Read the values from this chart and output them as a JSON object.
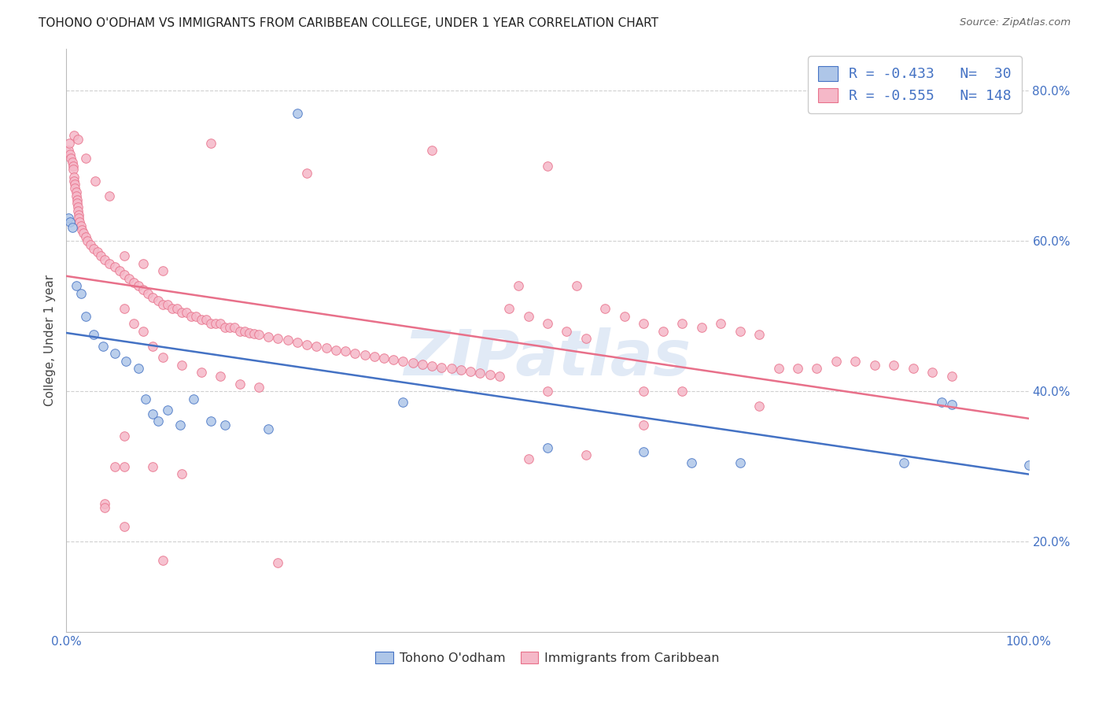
{
  "title": "TOHONO O'ODHAM VS IMMIGRANTS FROM CARIBBEAN COLLEGE, UNDER 1 YEAR CORRELATION CHART",
  "source": "Source: ZipAtlas.com",
  "ylabel": "College, Under 1 year",
  "legend_bottom": [
    "Tohono O'odham",
    "Immigrants from Caribbean"
  ],
  "blue_R": -0.433,
  "blue_N": 30,
  "pink_R": -0.555,
  "pink_N": 148,
  "blue_color": "#aec6e8",
  "pink_color": "#f5b8c8",
  "blue_line_color": "#4472c4",
  "pink_line_color": "#e8708a",
  "blue_scatter": [
    [
      0.002,
      0.63
    ],
    [
      0.004,
      0.625
    ],
    [
      0.006,
      0.618
    ],
    [
      0.01,
      0.54
    ],
    [
      0.015,
      0.53
    ],
    [
      0.02,
      0.5
    ],
    [
      0.028,
      0.475
    ],
    [
      0.038,
      0.46
    ],
    [
      0.05,
      0.45
    ],
    [
      0.062,
      0.44
    ],
    [
      0.075,
      0.43
    ],
    [
      0.082,
      0.39
    ],
    [
      0.09,
      0.37
    ],
    [
      0.095,
      0.36
    ],
    [
      0.105,
      0.375
    ],
    [
      0.118,
      0.355
    ],
    [
      0.132,
      0.39
    ],
    [
      0.15,
      0.36
    ],
    [
      0.165,
      0.355
    ],
    [
      0.21,
      0.35
    ],
    [
      0.24,
      0.77
    ],
    [
      0.35,
      0.385
    ],
    [
      0.5,
      0.325
    ],
    [
      0.6,
      0.32
    ],
    [
      0.65,
      0.305
    ],
    [
      0.7,
      0.305
    ],
    [
      0.87,
      0.305
    ],
    [
      0.91,
      0.385
    ],
    [
      0.92,
      0.382
    ],
    [
      1.0,
      0.302
    ]
  ],
  "pink_scatter": [
    [
      0.002,
      0.72
    ],
    [
      0.003,
      0.73
    ],
    [
      0.004,
      0.715
    ],
    [
      0.005,
      0.71
    ],
    [
      0.006,
      0.705
    ],
    [
      0.007,
      0.7
    ],
    [
      0.007,
      0.695
    ],
    [
      0.008,
      0.685
    ],
    [
      0.008,
      0.68
    ],
    [
      0.009,
      0.675
    ],
    [
      0.009,
      0.67
    ],
    [
      0.01,
      0.665
    ],
    [
      0.01,
      0.66
    ],
    [
      0.011,
      0.655
    ],
    [
      0.011,
      0.65
    ],
    [
      0.012,
      0.645
    ],
    [
      0.012,
      0.64
    ],
    [
      0.013,
      0.635
    ],
    [
      0.013,
      0.63
    ],
    [
      0.014,
      0.625
    ],
    [
      0.015,
      0.62
    ],
    [
      0.016,
      0.615
    ],
    [
      0.018,
      0.61
    ],
    [
      0.02,
      0.605
    ],
    [
      0.022,
      0.6
    ],
    [
      0.025,
      0.595
    ],
    [
      0.028,
      0.59
    ],
    [
      0.032,
      0.585
    ],
    [
      0.036,
      0.58
    ],
    [
      0.04,
      0.575
    ],
    [
      0.045,
      0.57
    ],
    [
      0.05,
      0.565
    ],
    [
      0.055,
      0.56
    ],
    [
      0.06,
      0.555
    ],
    [
      0.065,
      0.55
    ],
    [
      0.07,
      0.545
    ],
    [
      0.075,
      0.54
    ],
    [
      0.08,
      0.535
    ],
    [
      0.085,
      0.53
    ],
    [
      0.09,
      0.525
    ],
    [
      0.095,
      0.52
    ],
    [
      0.1,
      0.515
    ],
    [
      0.105,
      0.515
    ],
    [
      0.11,
      0.51
    ],
    [
      0.115,
      0.51
    ],
    [
      0.12,
      0.505
    ],
    [
      0.125,
      0.505
    ],
    [
      0.13,
      0.5
    ],
    [
      0.135,
      0.5
    ],
    [
      0.14,
      0.495
    ],
    [
      0.145,
      0.495
    ],
    [
      0.15,
      0.49
    ],
    [
      0.155,
      0.49
    ],
    [
      0.16,
      0.49
    ],
    [
      0.165,
      0.485
    ],
    [
      0.17,
      0.485
    ],
    [
      0.175,
      0.485
    ],
    [
      0.18,
      0.48
    ],
    [
      0.185,
      0.48
    ],
    [
      0.19,
      0.478
    ],
    [
      0.195,
      0.476
    ],
    [
      0.2,
      0.475
    ],
    [
      0.21,
      0.472
    ],
    [
      0.22,
      0.47
    ],
    [
      0.23,
      0.468
    ],
    [
      0.24,
      0.465
    ],
    [
      0.25,
      0.462
    ],
    [
      0.26,
      0.46
    ],
    [
      0.27,
      0.458
    ],
    [
      0.28,
      0.455
    ],
    [
      0.29,
      0.453
    ],
    [
      0.3,
      0.45
    ],
    [
      0.31,
      0.448
    ],
    [
      0.32,
      0.446
    ],
    [
      0.33,
      0.444
    ],
    [
      0.34,
      0.442
    ],
    [
      0.35,
      0.44
    ],
    [
      0.36,
      0.438
    ],
    [
      0.37,
      0.436
    ],
    [
      0.38,
      0.434
    ],
    [
      0.39,
      0.432
    ],
    [
      0.4,
      0.43
    ],
    [
      0.41,
      0.428
    ],
    [
      0.42,
      0.426
    ],
    [
      0.43,
      0.424
    ],
    [
      0.44,
      0.422
    ],
    [
      0.45,
      0.42
    ],
    [
      0.008,
      0.74
    ],
    [
      0.012,
      0.735
    ],
    [
      0.02,
      0.71
    ],
    [
      0.03,
      0.68
    ],
    [
      0.045,
      0.66
    ],
    [
      0.06,
      0.58
    ],
    [
      0.08,
      0.57
    ],
    [
      0.1,
      0.56
    ],
    [
      0.06,
      0.51
    ],
    [
      0.07,
      0.49
    ],
    [
      0.08,
      0.48
    ],
    [
      0.09,
      0.46
    ],
    [
      0.1,
      0.445
    ],
    [
      0.12,
      0.435
    ],
    [
      0.14,
      0.425
    ],
    [
      0.16,
      0.42
    ],
    [
      0.18,
      0.41
    ],
    [
      0.2,
      0.405
    ],
    [
      0.15,
      0.73
    ],
    [
      0.25,
      0.69
    ],
    [
      0.38,
      0.72
    ],
    [
      0.5,
      0.7
    ],
    [
      0.47,
      0.54
    ],
    [
      0.53,
      0.54
    ],
    [
      0.46,
      0.51
    ],
    [
      0.48,
      0.5
    ],
    [
      0.5,
      0.49
    ],
    [
      0.52,
      0.48
    ],
    [
      0.54,
      0.47
    ],
    [
      0.56,
      0.51
    ],
    [
      0.58,
      0.5
    ],
    [
      0.6,
      0.49
    ],
    [
      0.62,
      0.48
    ],
    [
      0.64,
      0.49
    ],
    [
      0.66,
      0.485
    ],
    [
      0.68,
      0.49
    ],
    [
      0.7,
      0.48
    ],
    [
      0.72,
      0.475
    ],
    [
      0.74,
      0.43
    ],
    [
      0.76,
      0.43
    ],
    [
      0.78,
      0.43
    ],
    [
      0.8,
      0.44
    ],
    [
      0.82,
      0.44
    ],
    [
      0.84,
      0.435
    ],
    [
      0.86,
      0.435
    ],
    [
      0.88,
      0.43
    ],
    [
      0.9,
      0.425
    ],
    [
      0.92,
      0.42
    ],
    [
      0.5,
      0.4
    ],
    [
      0.6,
      0.4
    ],
    [
      0.64,
      0.4
    ],
    [
      0.72,
      0.38
    ],
    [
      0.6,
      0.355
    ],
    [
      0.48,
      0.31
    ],
    [
      0.54,
      0.315
    ],
    [
      0.09,
      0.3
    ],
    [
      0.06,
      0.3
    ],
    [
      0.05,
      0.3
    ],
    [
      0.12,
      0.29
    ],
    [
      0.04,
      0.25
    ],
    [
      0.04,
      0.245
    ],
    [
      0.06,
      0.22
    ],
    [
      0.06,
      0.34
    ],
    [
      0.1,
      0.175
    ],
    [
      0.22,
      0.172
    ]
  ],
  "xlim": [
    0.0,
    1.0
  ],
  "ylim": [
    0.08,
    0.855
  ],
  "ytick_positions": [
    0.2,
    0.4,
    0.6,
    0.8
  ],
  "ytick_labels": [
    "20.0%",
    "40.0%",
    "60.0%",
    "80.0%"
  ],
  "xtick_positions": [
    0.0,
    0.2,
    0.4,
    0.6,
    0.8,
    1.0
  ],
  "xtick_labels_bottom": [
    "0.0%",
    "",
    "",
    "",
    "",
    "100.0%"
  ],
  "background_color": "#ffffff",
  "grid_color": "#d0d0d0",
  "watermark_text": "ZIPatlas",
  "watermark_color": "#cddcf0",
  "title_fontsize": 11,
  "axis_tick_fontsize": 11,
  "axis_label_color": "#4472c4"
}
